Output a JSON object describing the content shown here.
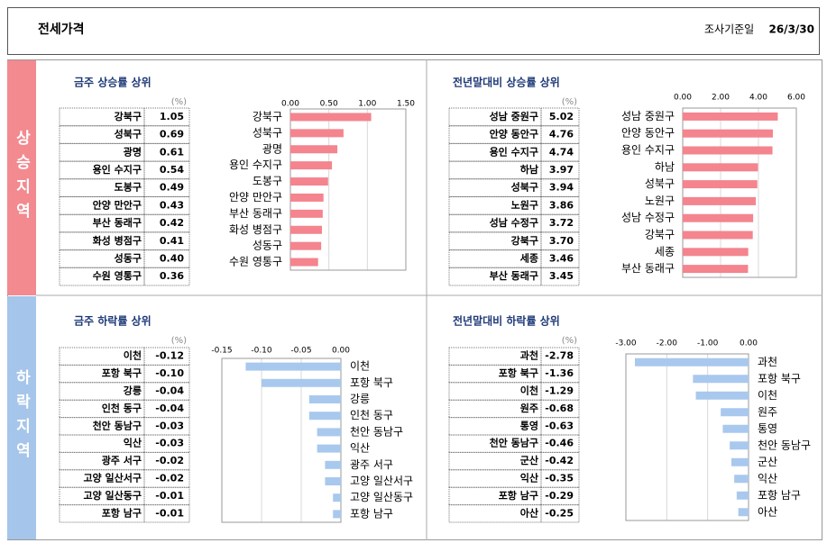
{
  "header": {
    "title": "전세가격",
    "date_label": "조사기준일",
    "date": "26/3/30"
  },
  "sections": [
    "상승지역",
    "하락지역"
  ],
  "chart_data": [
    {
      "type": "bar",
      "orientation": "horizontal",
      "title": "금주 상승률 상위",
      "unit": "(%)",
      "categories": [
        "강북구",
        "성북구",
        "광명",
        "용인 수지구",
        "도봉구",
        "안양 만안구",
        "부산 동래구",
        "화성 병점구",
        "성동구",
        "수원 영통구"
      ],
      "values": [
        1.05,
        0.69,
        0.61,
        0.54,
        0.49,
        0.43,
        0.42,
        0.41,
        0.4,
        0.36
      ],
      "value_labels": [
        "1.05",
        "0.69",
        "0.61",
        "0.54",
        "0.49",
        "0.43",
        "0.42",
        "0.41",
        "0.40",
        "0.36"
      ],
      "xlim": [
        0,
        1.5
      ],
      "xticks": [
        {
          "value": 0,
          "label": "0.00"
        },
        {
          "value": 0.5,
          "label": "0.50"
        },
        {
          "value": 1,
          "label": "1.00"
        },
        {
          "value": 1.5,
          "label": "1.50"
        }
      ],
      "color": "#f4848e",
      "grid": true
    },
    {
      "type": "bar",
      "orientation": "horizontal",
      "title": "전년말대비 상승률 상위",
      "unit": "(%)",
      "categories": [
        "성남 중원구",
        "안양 동안구",
        "용인 수지구",
        "하남",
        "성북구",
        "노원구",
        "성남 수정구",
        "강북구",
        "세종",
        "부산 동래구"
      ],
      "values": [
        5.02,
        4.76,
        4.74,
        3.97,
        3.94,
        3.86,
        3.72,
        3.7,
        3.46,
        3.45
      ],
      "value_labels": [
        "5.02",
        "4.76",
        "4.74",
        "3.97",
        "3.94",
        "3.86",
        "3.72",
        "3.70",
        "3.46",
        "3.45"
      ],
      "xlim": [
        0,
        6
      ],
      "xticks": [
        {
          "value": 0,
          "label": "0.00"
        },
        {
          "value": 2,
          "label": "2.00"
        },
        {
          "value": 4,
          "label": "4.00"
        },
        {
          "value": 6,
          "label": "6.00"
        }
      ],
      "color": "#f4848e",
      "grid": true
    },
    {
      "type": "bar",
      "orientation": "horizontal",
      "title": "금주 하락률 상위",
      "unit": "(%)",
      "categories": [
        "이천",
        "포항 북구",
        "강릉",
        "인천 동구",
        "천안 동남구",
        "익산",
        "광주 서구",
        "고양 일산서구",
        "고양 일산동구",
        "포항 남구"
      ],
      "values": [
        -0.12,
        -0.1,
        -0.04,
        -0.04,
        -0.03,
        -0.03,
        -0.02,
        -0.02,
        -0.01,
        -0.01
      ],
      "value_labels": [
        "-0.12",
        "-0.10",
        "-0.04",
        "-0.04",
        "-0.03",
        "-0.03",
        "-0.02",
        "-0.02",
        "-0.01",
        "-0.01"
      ],
      "xlim": [
        -0.15,
        0
      ],
      "xticks": [
        -0.15,
        {
          "value": -0.1,
          "label": "-0.10"
        },
        -0.05,
        {
          "value": 0,
          "label": "0.00"
        }
      ],
      "color": "#a9c8ee",
      "grid": true
    },
    {
      "type": "bar",
      "orientation": "horizontal",
      "title": "전년말대비 하락률 상위",
      "unit": "(%)",
      "categories": [
        "과천",
        "포항 북구",
        "이천",
        "원주",
        "통영",
        "천안 동남구",
        "군산",
        "익산",
        "포항 남구",
        "아산"
      ],
      "values": [
        -2.78,
        -1.36,
        -1.29,
        -0.68,
        -0.63,
        -0.46,
        -0.42,
        -0.35,
        -0.29,
        -0.25
      ],
      "value_labels": [
        "-2.78",
        "-1.36",
        "-1.29",
        "-0.68",
        "-0.63",
        "-0.46",
        "-0.42",
        "-0.35",
        "-0.29",
        "-0.25"
      ],
      "xlim": [
        -3,
        0
      ],
      "xticks": [
        {
          "value": -3,
          "label": "-3.00"
        },
        {
          "value": -2,
          "label": "-2.00"
        },
        {
          "value": -1,
          "label": "-1.00"
        },
        {
          "value": 0,
          "label": "0.00"
        }
      ],
      "color": "#a9c8ee",
      "grid": true
    }
  ]
}
